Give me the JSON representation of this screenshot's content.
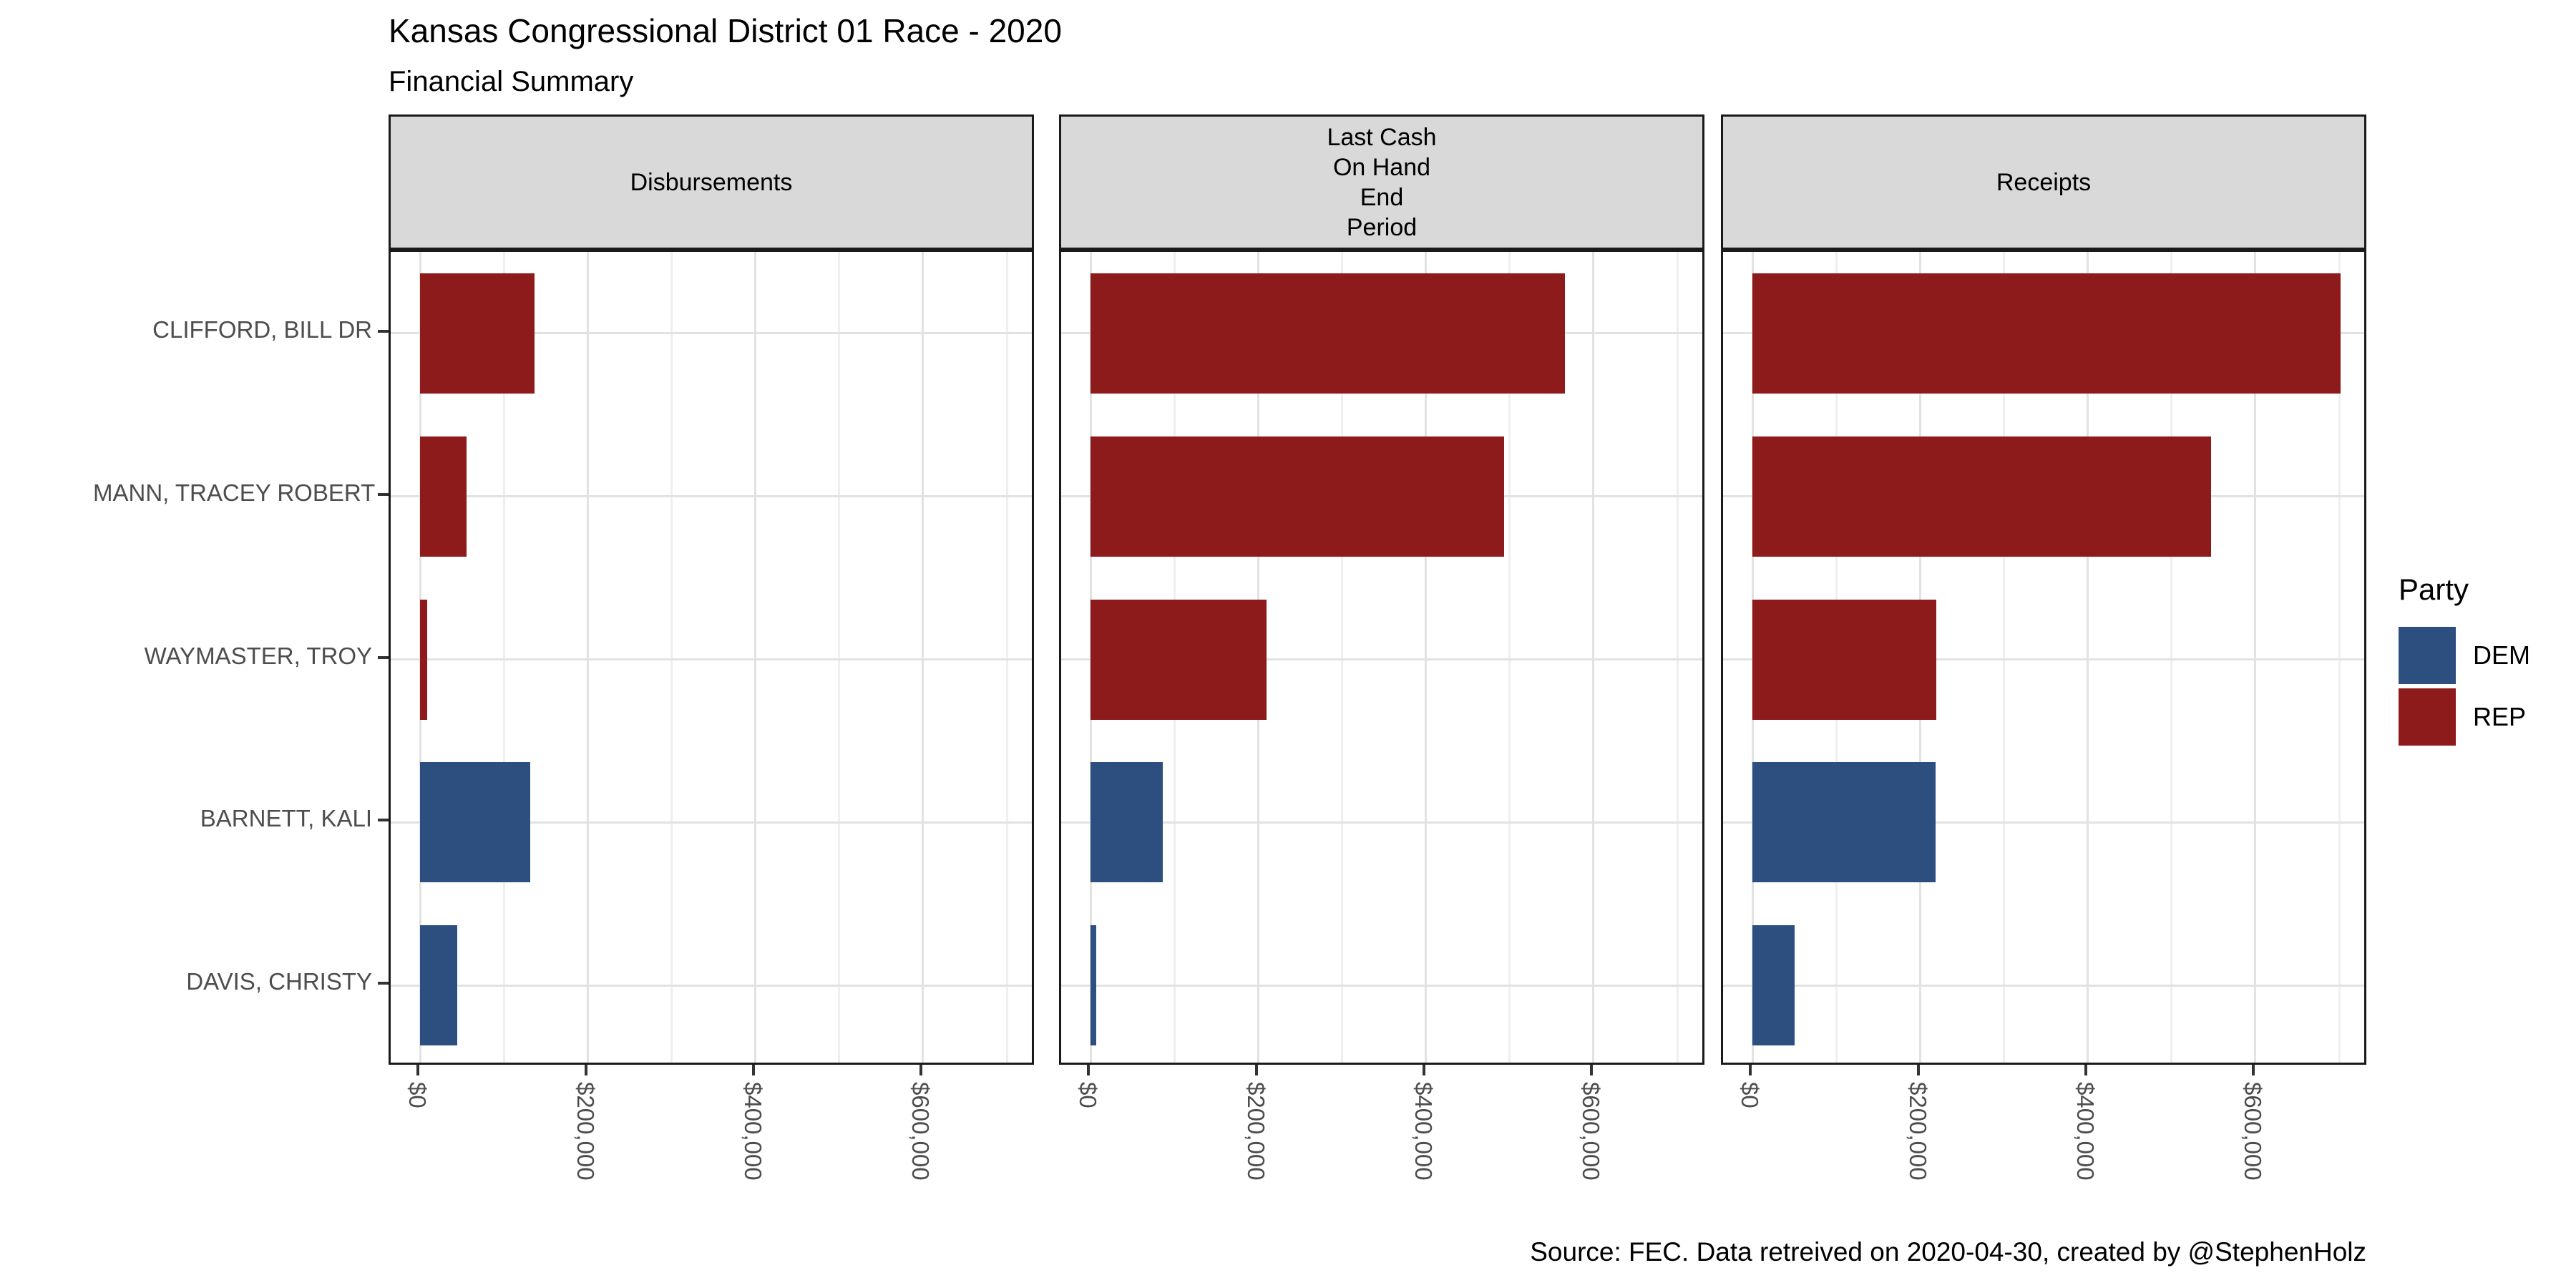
{
  "title": "Kansas Congressional District 01 Race - 2020",
  "subtitle": "Financial Summary",
  "caption": "Source: FEC. Data retreived on 2020-04-30, created by @StephenHolz",
  "legend": {
    "title": "Party",
    "entries": [
      {
        "label": "DEM",
        "color": "#2C4F7F"
      },
      {
        "label": "REP",
        "color": "#8E1B1B"
      }
    ]
  },
  "colors": {
    "dem": "#2C4F7F",
    "rep": "#8E1B1B",
    "strip_background": "#D9D9D9",
    "panel_border": "#1A1A1A",
    "grid_major": "#E2E2E2",
    "grid_minor": "#EFEFEF",
    "axis_text": "#4D4D4D",
    "tick_mark": "#333333"
  },
  "chart_data": {
    "type": "bar",
    "orientation": "horizontal",
    "title": "Kansas Congressional District 01 Race - 2020",
    "subtitle": "Financial Summary",
    "categories": [
      "CLIFFORD, BILL DR",
      "MANN, TRACEY ROBERT",
      "WAYMASTER, TROY",
      "BARNETT, KALI",
      "DAVIS, CHRISTY"
    ],
    "category_party": [
      "REP",
      "REP",
      "REP",
      "DEM",
      "DEM"
    ],
    "facets": [
      {
        "label_lines": [
          "Disbursements"
        ],
        "values": [
          136000,
          55000,
          8000,
          131000,
          44000
        ]
      },
      {
        "label_lines": [
          "Last Cash",
          "On Hand",
          "End",
          "Period"
        ],
        "values": [
          566000,
          493000,
          210000,
          86000,
          6000
        ]
      },
      {
        "label_lines": [
          "Receipts"
        ],
        "values": [
          702000,
          547000,
          219000,
          218000,
          50000
        ]
      }
    ],
    "x_axis": {
      "tick_values": [
        0,
        200000,
        400000,
        600000
      ],
      "tick_labels": [
        "$0",
        "$200,000",
        "$400,000",
        "$600,000"
      ],
      "minor_grid_values": [
        100000,
        300000,
        500000,
        700000
      ],
      "xlim": [
        -36000,
        738000
      ]
    },
    "legend_title": "Party",
    "legend_entries": [
      "DEM",
      "REP"
    ],
    "legend_position": "right",
    "grid": "on"
  }
}
